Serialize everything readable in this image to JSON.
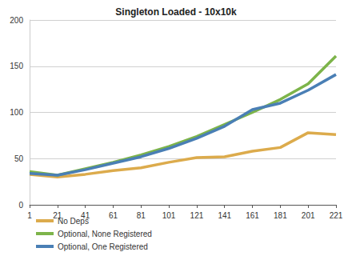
{
  "chart_data": {
    "type": "line",
    "title": "Singleton Loaded - 10x10k",
    "x": [
      1,
      21,
      41,
      61,
      81,
      101,
      121,
      141,
      161,
      181,
      201,
      221
    ],
    "series": [
      {
        "name": "No Deps",
        "color": "#dcab4c",
        "values": [
          33,
          30,
          33,
          37,
          40,
          46,
          51,
          52,
          58,
          62,
          78,
          76
        ]
      },
      {
        "name": "Optional, None Registered",
        "color": "#7db44a",
        "values": [
          36,
          32,
          39,
          46,
          54,
          63,
          74,
          87,
          100,
          114,
          131,
          161
        ]
      },
      {
        "name": "Optional, One Registered",
        "color": "#4a7fb5",
        "values": [
          34,
          32,
          38,
          45,
          52,
          61,
          72,
          85,
          103,
          110,
          124,
          141
        ]
      }
    ],
    "xlim": [
      1,
      221
    ],
    "xticks": [
      1,
      21,
      41,
      61,
      81,
      101,
      121,
      141,
      161,
      181,
      201,
      221
    ],
    "ylim": [
      0,
      200
    ],
    "yticks": [
      0,
      50,
      100,
      150,
      200
    ],
    "grid": true,
    "legend": "bottom-left"
  }
}
